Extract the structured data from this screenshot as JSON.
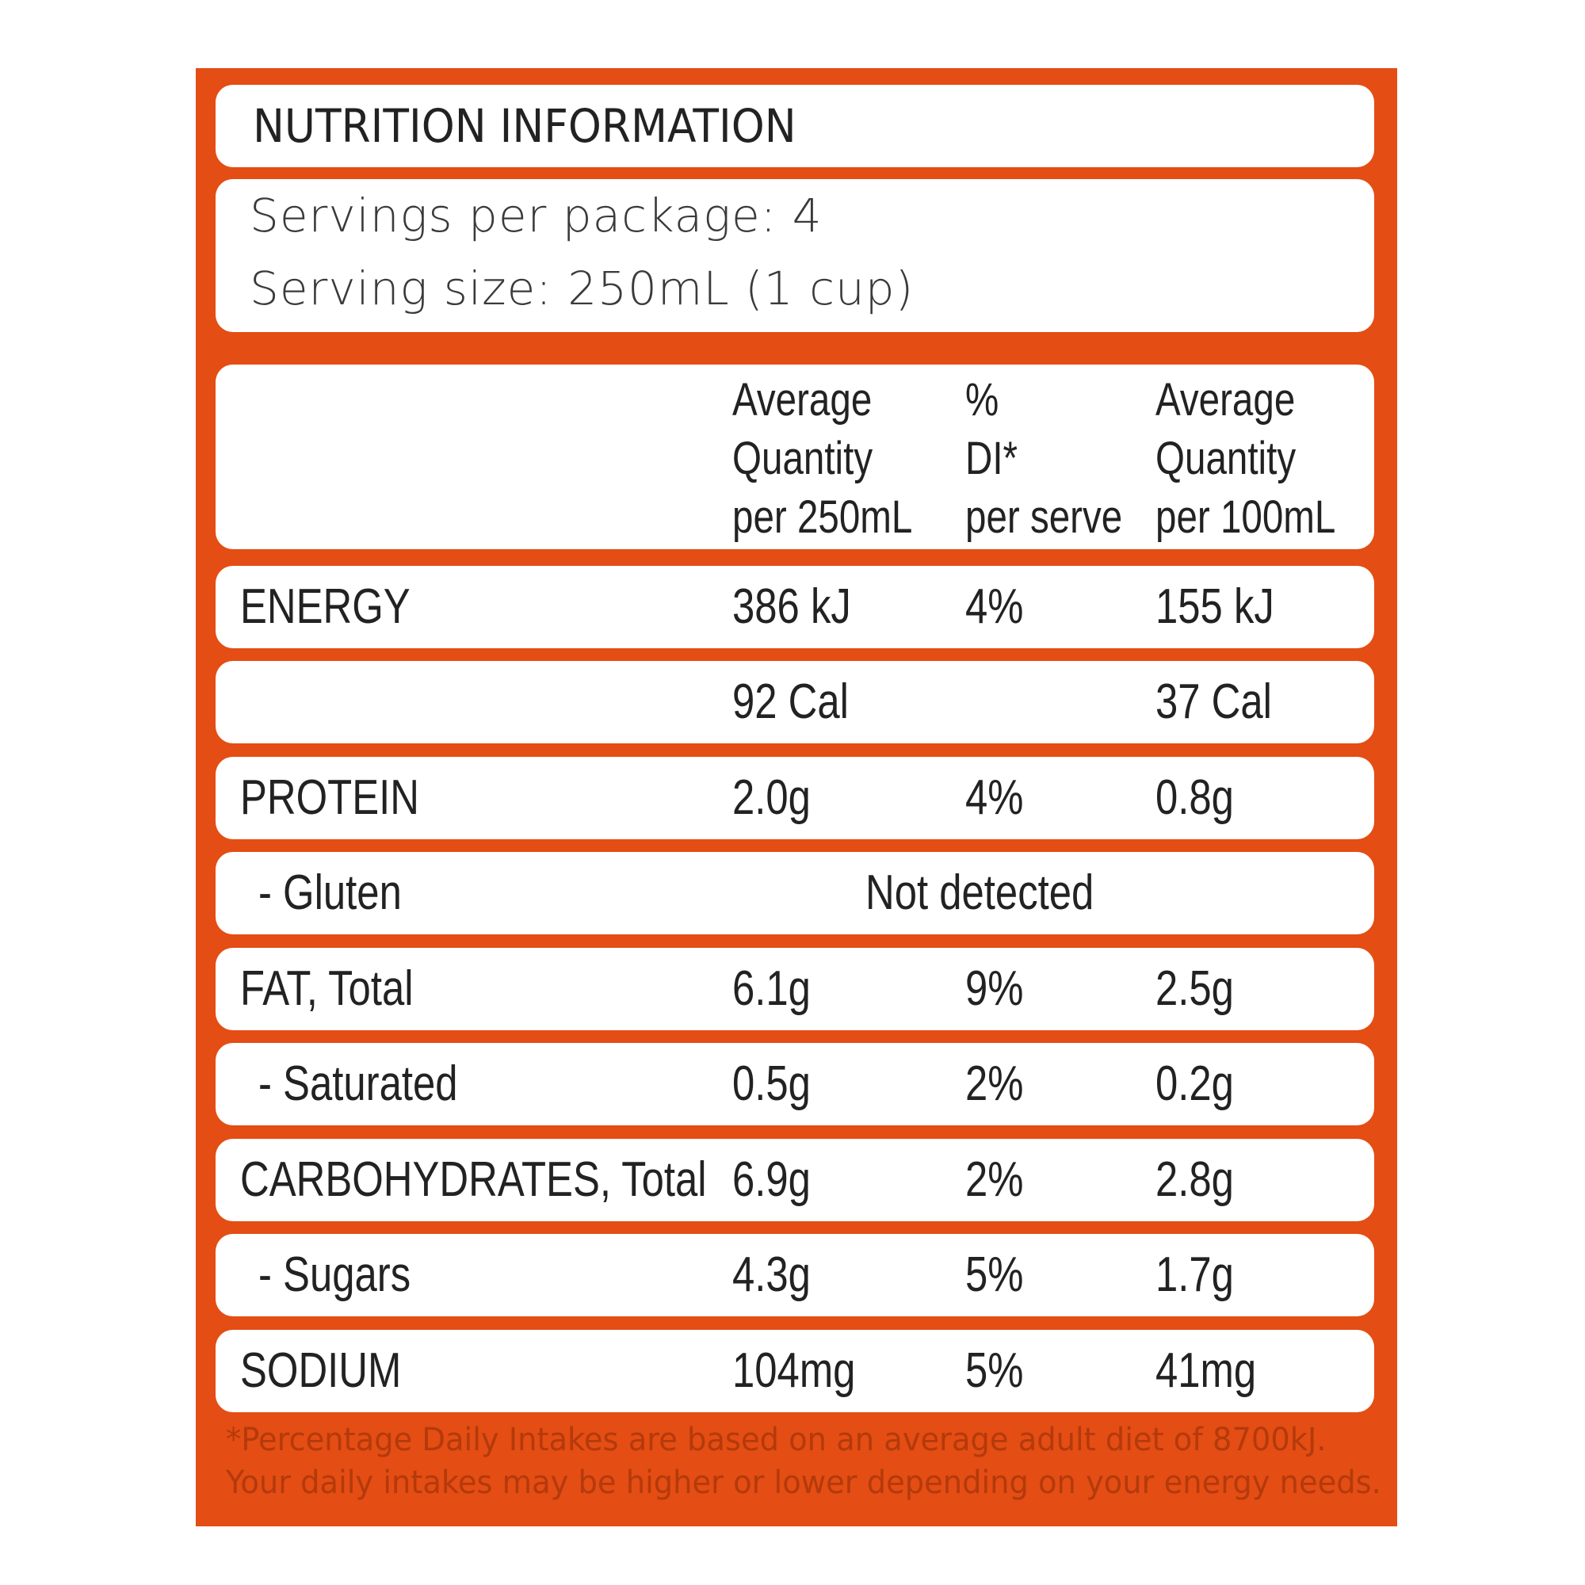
{
  "title": "NUTRITION INFORMATION",
  "servings": {
    "per_package": "Servings per package: 4",
    "size": "Serving size: 250mL (1 cup)"
  },
  "header": {
    "col1": [
      "Average",
      "Quantity",
      "per 250mL"
    ],
    "col2": [
      "%",
      "DI*",
      "per serve"
    ],
    "col3": [
      "Average",
      "Quantity",
      "per 100mL"
    ]
  },
  "rows": [
    {
      "name": "ENERGY",
      "q250": "386 kJ",
      "di": "4%",
      "q100": "155 kJ"
    },
    {
      "name": "",
      "q250": "92 Cal",
      "di": "",
      "q100": "37 Cal"
    },
    {
      "name": "PROTEIN",
      "q250": "2.0g",
      "di": "4%",
      "q100": "0.8g"
    },
    {
      "name": "- Gluten",
      "span": "Not detected"
    },
    {
      "name": "FAT, Total",
      "q250": "6.1g",
      "di": "9%",
      "q100": "2.5g"
    },
    {
      "name": "- Saturated",
      "q250": "0.5g",
      "di": "2%",
      "q100": "0.2g"
    },
    {
      "name": "CARBOHYDRATES, Total",
      "q250": "6.9g",
      "di": "2%",
      "q100": "2.8g"
    },
    {
      "name": "- Sugars",
      "q250": "4.3g",
      "di": "5%",
      "q100": "1.7g"
    },
    {
      "name": "SODIUM",
      "q250": "104mg",
      "di": "5%",
      "q100": "41mg"
    }
  ],
  "footnote": [
    "*Percentage Daily Intakes are based on an average adult diet of 8700kJ.",
    "Your daily intakes may be higher or lower depending on your energy needs."
  ],
  "colors": {
    "panel": "#e44d13",
    "text": "#222222",
    "footnote": "#b33a0c"
  }
}
